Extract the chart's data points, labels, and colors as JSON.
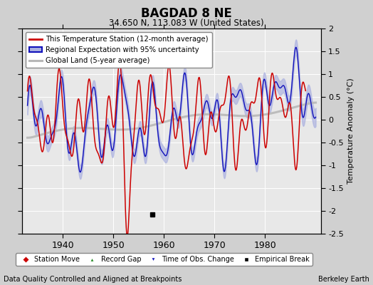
{
  "title": "BAGDAD 8 NE",
  "subtitle": "34.650 N, 113.083 W (United States)",
  "ylabel": "Temperature Anomaly (°C)",
  "xlabel_bottom_left": "Data Quality Controlled and Aligned at Breakpoints",
  "xlabel_bottom_right": "Berkeley Earth",
  "ylim": [
    -2.5,
    2.0
  ],
  "xlim": [
    1932,
    1991
  ],
  "yticks": [
    -2.5,
    -2,
    -1.5,
    -1,
    -0.5,
    0,
    0.5,
    1,
    1.5,
    2
  ],
  "xticks": [
    1940,
    1950,
    1960,
    1970,
    1980
  ],
  "bg_color": "#d0d0d0",
  "plot_bg_color": "#e8e8e8",
  "grid_color": "#ffffff",
  "red_color": "#cc0000",
  "blue_color": "#1111bb",
  "band_color": "#aab0e0",
  "gray_color": "#b8b8b8",
  "empirical_break_x": 1957.7,
  "empirical_break_y": -2.08
}
